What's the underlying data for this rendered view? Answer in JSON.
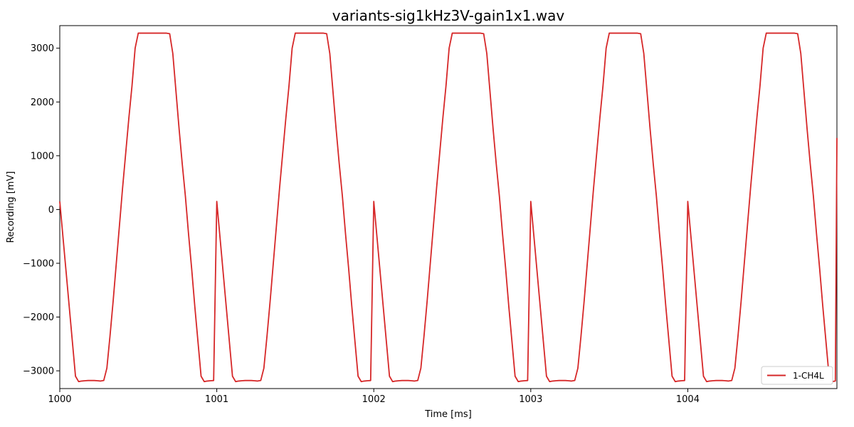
{
  "chart_data": {
    "type": "line",
    "title": "variants-sig1kHz3V-gain1x1.wav",
    "xlabel": "Time [ms]",
    "ylabel": "Recording [mV]",
    "xlim": [
      1000,
      1004.95
    ],
    "ylim": [
      -3330,
      3420
    ],
    "x_ticks": [
      1000,
      1001,
      1002,
      1003,
      1004
    ],
    "x_tick_labels": [
      "1000",
      "1001",
      "1002",
      "1003",
      "1004"
    ],
    "y_ticks": [
      -3000,
      -2000,
      -1000,
      0,
      1000,
      2000,
      3000
    ],
    "y_tick_labels": [
      "−3000",
      "−2000",
      "−1000",
      "0",
      "1000",
      "2000",
      "3000"
    ],
    "grid": false,
    "legend_position": "lower-right",
    "series": [
      {
        "name": "1-CH4L",
        "color": "#d62728",
        "period_ms": 1.0,
        "x": [
          1000.0,
          1000.02,
          1000.04,
          1000.06,
          1000.08,
          1000.1,
          1000.12,
          1000.14,
          1000.16,
          1000.18,
          1000.2,
          1000.22,
          1000.24,
          1000.26,
          1000.28,
          1000.3,
          1000.32,
          1000.34,
          1000.36,
          1000.38,
          1000.4,
          1000.42,
          1000.44,
          1000.46,
          1000.48,
          1000.5,
          1000.52,
          1000.54,
          1000.56,
          1000.58,
          1000.6,
          1000.62,
          1000.64,
          1000.66,
          1000.68,
          1000.7,
          1000.72,
          1000.74,
          1000.76,
          1000.78,
          1000.8,
          1000.82,
          1000.84,
          1000.86,
          1000.88,
          1000.9,
          1000.92,
          1000.94,
          1000.96,
          1000.98
        ],
        "y": [
          150,
          -500,
          -1150,
          -1800,
          -2450,
          -3100,
          -3200,
          -3190,
          -3185,
          -3180,
          -3180,
          -3180,
          -3185,
          -3190,
          -3180,
          -2950,
          -2350,
          -1700,
          -1000,
          -300,
          400,
          1050,
          1700,
          2300,
          3000,
          3280,
          3280,
          3280,
          3280,
          3280,
          3280,
          3280,
          3280,
          3280,
          3280,
          3270,
          2900,
          2200,
          1500,
          850,
          250,
          -450,
          -1100,
          -1800,
          -2450,
          -3100,
          -3200,
          -3190,
          -3185,
          -3180
        ],
        "y_end": 1330
      }
    ]
  }
}
